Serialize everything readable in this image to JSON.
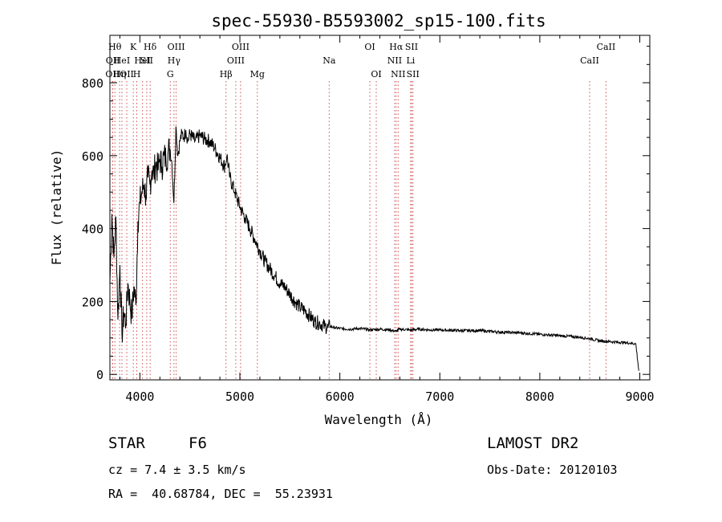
{
  "chart_data": {
    "type": "line",
    "title": "spec-55930-B5593002_sp15-100.fits",
    "xlabel": "Wavelength (Å)",
    "ylabel": "Flux (relative)",
    "xlim": [
      3700,
      9100
    ],
    "ylim": [
      -15,
      930
    ],
    "xticks": [
      4000,
      5000,
      6000,
      7000,
      8000,
      9000
    ],
    "yticks": [
      0,
      200,
      400,
      600,
      800
    ],
    "grid": false,
    "series": [
      {
        "x": [
          3700,
          3720,
          3740,
          3760,
          3780,
          3800,
          3820,
          3840,
          3860,
          3880,
          3900,
          3920,
          3940,
          3960,
          3980,
          4000,
          4020,
          4040,
          4060,
          4080,
          4100,
          4120,
          4140,
          4160,
          4180,
          4200,
          4220,
          4240,
          4260,
          4280,
          4300,
          4320,
          4340,
          4360,
          4380,
          4400,
          4420,
          4440,
          4460,
          4480,
          4500,
          4550,
          4600,
          4650,
          4700,
          4750,
          4800,
          4850,
          4870,
          4900,
          4950,
          5000,
          5050,
          5100,
          5150,
          5200,
          5250,
          5300,
          5350,
          5400,
          5450,
          5500,
          5550,
          5600,
          5650,
          5700,
          5750,
          5800,
          5850,
          5880,
          5900,
          5950,
          6000,
          6100,
          6200,
          6300,
          6400,
          6500,
          6560,
          6600,
          6700,
          6800,
          6900,
          7000,
          7200,
          7400,
          7600,
          7800,
          8000,
          8200,
          8400,
          8500,
          8600,
          8700,
          8800,
          8900,
          8960,
          8990
        ],
        "y": [
          250,
          440,
          320,
          430,
          150,
          300,
          110,
          170,
          140,
          250,
          200,
          160,
          240,
          190,
          420,
          470,
          500,
          520,
          490,
          540,
          520,
          560,
          550,
          580,
          560,
          590,
          570,
          600,
          590,
          610,
          620,
          580,
          470,
          680,
          600,
          640,
          660,
          650,
          670,
          640,
          660,
          640,
          655,
          645,
          640,
          620,
          595,
          570,
          600,
          540,
          500,
          460,
          430,
          400,
          370,
          340,
          310,
          290,
          270,
          250,
          240,
          220,
          200,
          185,
          175,
          160,
          145,
          140,
          132,
          128,
          132,
          128,
          126,
          124,
          126,
          122,
          124,
          122,
          118,
          124,
          122,
          124,
          122,
          122,
          120,
          120,
          116,
          114,
          110,
          106,
          102,
          98,
          92,
          90,
          88,
          86,
          84,
          10
        ]
      }
    ],
    "spectral_lines": [
      {
        "x": 3726,
        "label": "OII",
        "row": 3
      },
      {
        "x": 3729,
        "label": "OII",
        "row": 2
      },
      {
        "x": 3750,
        "label": "Hθ",
        "row": 1
      },
      {
        "x": 3797,
        "label": "Hη",
        "row": 3
      },
      {
        "x": 3820,
        "label": "HeI",
        "row": 2
      },
      {
        "x": 3869,
        "label": "OII",
        "row": 3
      },
      {
        "x": 3934,
        "label": "K",
        "row": 1
      },
      {
        "x": 3969,
        "label": "H",
        "row": 3
      },
      {
        "x": 4026,
        "label": "HeI",
        "row": 2
      },
      {
        "x": 4068,
        "label": "SII",
        "row": 2
      },
      {
        "x": 4102,
        "label": "Hδ",
        "row": 1
      },
      {
        "x": 4304,
        "label": "G",
        "row": 3
      },
      {
        "x": 4341,
        "label": "Hγ",
        "row": 2
      },
      {
        "x": 4363,
        "label": "OIII",
        "row": 1
      },
      {
        "x": 4861,
        "label": "Hβ",
        "row": 3
      },
      {
        "x": 4959,
        "label": "OIII",
        "row": 2
      },
      {
        "x": 5007,
        "label": "OIII",
        "row": 1
      },
      {
        "x": 5175,
        "label": "Mg",
        "row": 3
      },
      {
        "x": 5893,
        "label": "Na",
        "row": 2
      },
      {
        "x": 6300,
        "label": "OI",
        "row": 1
      },
      {
        "x": 6364,
        "label": "OI",
        "row": 3
      },
      {
        "x": 6548,
        "label": "NII",
        "row": 2
      },
      {
        "x": 6563,
        "label": "Hα",
        "row": 1
      },
      {
        "x": 6583,
        "label": "NII",
        "row": 3
      },
      {
        "x": 6708,
        "label": "Li",
        "row": 2
      },
      {
        "x": 6717,
        "label": "SII",
        "row": 1
      },
      {
        "x": 6731,
        "label": "SII",
        "row": 3
      },
      {
        "x": 8498,
        "label": "CaII",
        "row": 2
      },
      {
        "x": 8662,
        "label": "CaII",
        "row": 1
      }
    ]
  },
  "info": {
    "class": "STAR",
    "subclass": "F6",
    "survey": "LAMOST DR2",
    "cz": "cz = 7.4 ± 3.5 km/s",
    "obsdate": "Obs-Date: 20120103",
    "coords": "RA =  40.68784, DEC =  55.23931"
  }
}
